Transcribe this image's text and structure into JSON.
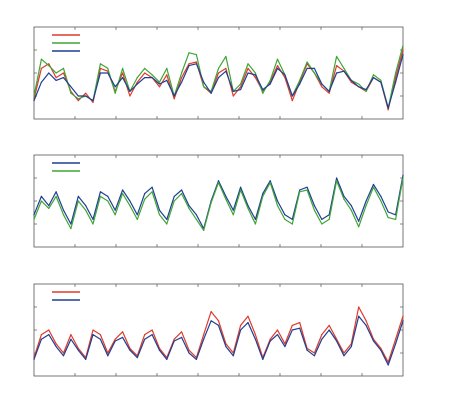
{
  "colors": {
    "red": "#e03a2a",
    "green": "#3fa535",
    "blue": "#1f3f96",
    "frame": "#555555"
  },
  "chart_data": [
    {
      "type": "line",
      "title": "",
      "xlabel": "",
      "ylabel": "",
      "xlim": [
        0,
        100
      ],
      "ylim": [
        0,
        1
      ],
      "grid": false,
      "legend": "top-left",
      "x": [
        0,
        2,
        4,
        6,
        8,
        10,
        12,
        14,
        16,
        18,
        20,
        22,
        24,
        26,
        28,
        30,
        32,
        34,
        36,
        38,
        40,
        42,
        44,
        46,
        48,
        50,
        52,
        54,
        56,
        58,
        60,
        62,
        64,
        66,
        68,
        70,
        72,
        74,
        76,
        78,
        80,
        82,
        84,
        86,
        88,
        90,
        92,
        94,
        96,
        98,
        100
      ],
      "series": [
        {
          "color": "red",
          "values": [
            0.22,
            0.55,
            0.6,
            0.45,
            0.5,
            0.3,
            0.2,
            0.28,
            0.18,
            0.55,
            0.52,
            0.3,
            0.5,
            0.25,
            0.4,
            0.5,
            0.45,
            0.35,
            0.48,
            0.22,
            0.45,
            0.6,
            0.62,
            0.35,
            0.28,
            0.5,
            0.55,
            0.25,
            0.35,
            0.55,
            0.45,
            0.3,
            0.4,
            0.58,
            0.45,
            0.2,
            0.4,
            0.6,
            0.5,
            0.35,
            0.28,
            0.58,
            0.52,
            0.4,
            0.35,
            0.3,
            0.45,
            0.4,
            0.1,
            0.45,
            0.75
          ]
        },
        {
          "color": "green",
          "values": [
            0.25,
            0.65,
            0.58,
            0.5,
            0.55,
            0.28,
            0.22,
            0.25,
            0.2,
            0.6,
            0.55,
            0.28,
            0.55,
            0.3,
            0.45,
            0.55,
            0.48,
            0.4,
            0.55,
            0.25,
            0.5,
            0.72,
            0.7,
            0.35,
            0.3,
            0.55,
            0.68,
            0.3,
            0.38,
            0.6,
            0.5,
            0.28,
            0.42,
            0.65,
            0.48,
            0.25,
            0.42,
            0.62,
            0.5,
            0.38,
            0.3,
            0.68,
            0.55,
            0.42,
            0.38,
            0.3,
            0.48,
            0.42,
            0.12,
            0.5,
            0.8
          ]
        },
        {
          "color": "blue",
          "values": [
            0.2,
            0.4,
            0.5,
            0.42,
            0.45,
            0.35,
            0.25,
            0.25,
            0.2,
            0.5,
            0.5,
            0.35,
            0.45,
            0.3,
            0.38,
            0.45,
            0.45,
            0.38,
            0.42,
            0.25,
            0.4,
            0.58,
            0.6,
            0.4,
            0.28,
            0.45,
            0.52,
            0.3,
            0.32,
            0.5,
            0.48,
            0.32,
            0.38,
            0.55,
            0.48,
            0.25,
            0.38,
            0.55,
            0.55,
            0.38,
            0.3,
            0.5,
            0.52,
            0.42,
            0.35,
            0.32,
            0.45,
            0.4,
            0.12,
            0.4,
            0.7
          ]
        }
      ]
    },
    {
      "type": "line",
      "title": "",
      "xlabel": "",
      "ylabel": "",
      "xlim": [
        0,
        100
      ],
      "ylim": [
        0,
        1
      ],
      "grid": false,
      "legend": "top-left",
      "x": [
        0,
        2,
        4,
        6,
        8,
        10,
        12,
        14,
        16,
        18,
        20,
        22,
        24,
        26,
        28,
        30,
        32,
        34,
        36,
        38,
        40,
        42,
        44,
        46,
        48,
        50,
        52,
        54,
        56,
        58,
        60,
        62,
        64,
        66,
        68,
        70,
        72,
        74,
        76,
        78,
        80,
        82,
        84,
        86,
        88,
        90,
        92,
        94,
        96,
        98,
        100
      ],
      "series": [
        {
          "color": "blue",
          "values": [
            0.35,
            0.55,
            0.45,
            0.6,
            0.4,
            0.25,
            0.55,
            0.45,
            0.3,
            0.6,
            0.55,
            0.4,
            0.62,
            0.5,
            0.35,
            0.58,
            0.65,
            0.4,
            0.3,
            0.55,
            0.62,
            0.45,
            0.35,
            0.2,
            0.5,
            0.72,
            0.55,
            0.4,
            0.65,
            0.45,
            0.3,
            0.58,
            0.72,
            0.5,
            0.35,
            0.3,
            0.62,
            0.65,
            0.45,
            0.3,
            0.35,
            0.75,
            0.55,
            0.45,
            0.28,
            0.5,
            0.68,
            0.55,
            0.38,
            0.35,
            0.78
          ]
        },
        {
          "color": "green",
          "values": [
            0.3,
            0.5,
            0.42,
            0.55,
            0.35,
            0.2,
            0.5,
            0.4,
            0.25,
            0.55,
            0.5,
            0.35,
            0.58,
            0.45,
            0.3,
            0.52,
            0.6,
            0.35,
            0.25,
            0.5,
            0.58,
            0.42,
            0.3,
            0.18,
            0.48,
            0.7,
            0.52,
            0.35,
            0.62,
            0.42,
            0.25,
            0.55,
            0.7,
            0.45,
            0.3,
            0.25,
            0.6,
            0.62,
            0.4,
            0.25,
            0.3,
            0.72,
            0.52,
            0.4,
            0.22,
            0.45,
            0.65,
            0.5,
            0.32,
            0.3,
            0.75
          ]
        }
      ]
    },
    {
      "type": "line",
      "title": "",
      "xlabel": "",
      "ylabel": "",
      "xlim": [
        0,
        100
      ],
      "ylim": [
        0,
        1
      ],
      "grid": false,
      "legend": "top-left",
      "x": [
        0,
        2,
        4,
        6,
        8,
        10,
        12,
        14,
        16,
        18,
        20,
        22,
        24,
        26,
        28,
        30,
        32,
        34,
        36,
        38,
        40,
        42,
        44,
        46,
        48,
        50,
        52,
        54,
        56,
        58,
        60,
        62,
        64,
        66,
        68,
        70,
        72,
        74,
        76,
        78,
        80,
        82,
        84,
        86,
        88,
        90,
        92,
        94,
        96,
        98,
        100
      ],
      "series": [
        {
          "color": "red",
          "values": [
            0.2,
            0.45,
            0.5,
            0.35,
            0.25,
            0.45,
            0.3,
            0.2,
            0.5,
            0.45,
            0.25,
            0.4,
            0.48,
            0.3,
            0.22,
            0.45,
            0.5,
            0.3,
            0.2,
            0.4,
            0.48,
            0.28,
            0.2,
            0.45,
            0.7,
            0.6,
            0.35,
            0.25,
            0.55,
            0.65,
            0.45,
            0.2,
            0.4,
            0.5,
            0.35,
            0.55,
            0.58,
            0.3,
            0.25,
            0.45,
            0.55,
            0.4,
            0.25,
            0.35,
            0.75,
            0.6,
            0.4,
            0.3,
            0.15,
            0.4,
            0.65
          ]
        },
        {
          "color": "blue",
          "values": [
            0.18,
            0.4,
            0.45,
            0.32,
            0.22,
            0.4,
            0.28,
            0.18,
            0.45,
            0.4,
            0.22,
            0.38,
            0.42,
            0.28,
            0.2,
            0.4,
            0.45,
            0.28,
            0.18,
            0.38,
            0.42,
            0.25,
            0.18,
            0.4,
            0.6,
            0.55,
            0.32,
            0.22,
            0.5,
            0.58,
            0.4,
            0.18,
            0.38,
            0.45,
            0.32,
            0.5,
            0.52,
            0.28,
            0.22,
            0.4,
            0.5,
            0.38,
            0.22,
            0.32,
            0.65,
            0.55,
            0.38,
            0.28,
            0.12,
            0.35,
            0.6
          ]
        }
      ]
    }
  ]
}
